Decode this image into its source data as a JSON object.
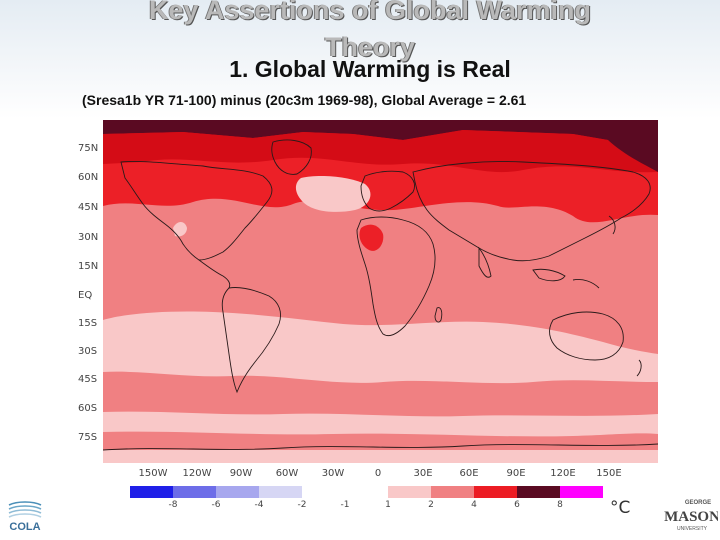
{
  "title_lines": [
    "Key Assertions of Global Warming",
    "Theory"
  ],
  "subtitle": "1. Global Warming is Real",
  "caption": "(Sresa1b YR 71-100) minus (20c3m 1969-98),  Global Average = 2.61",
  "map": {
    "lat_labels": [
      "75N",
      "60N",
      "45N",
      "30N",
      "15N",
      "EQ",
      "15S",
      "30S",
      "45S",
      "60S",
      "75S"
    ],
    "lon_labels": [
      "150W",
      "120W",
      "90W",
      "60W",
      "30W",
      "0",
      "30E",
      "60E",
      "90E",
      "120E",
      "150E"
    ],
    "colors": {
      "ocean_main": "#f08082",
      "ocean_light": "#f9c8c8",
      "high_lat": "#ec2027",
      "arctic": "#d40c16",
      "extreme": "#5a0a22",
      "coast": "#2a1a1a"
    }
  },
  "colorbar": {
    "colors": [
      "#1f1fe8",
      "#6d6de8",
      "#a7a7ee",
      "#d6d6f4",
      "#ffffff",
      "#f9c8c8",
      "#f08082",
      "#ec1c24",
      "#5a0a22",
      "#ff00ff"
    ],
    "labels": [
      "-8",
      "-6",
      "-4",
      "-2",
      "-1",
      "1",
      "2",
      "4",
      "6",
      "8"
    ],
    "units": "°C"
  },
  "logos": {
    "left_text": "COLA",
    "right_text_small": "GEORGE",
    "right_text_large": "MASON",
    "right_text_bottom": "UNIVERSITY"
  }
}
